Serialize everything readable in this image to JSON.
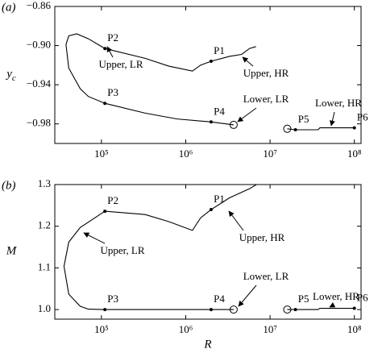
{
  "chart_data": [
    {
      "type": "line",
      "panel_label": "(a)",
      "ylabel": "y",
      "ylabel_subscript": "c",
      "log_x": true,
      "xlim": [
        28000,
        120000000
      ],
      "xticks": [
        {
          "value": 100000,
          "label": "10⁵"
        },
        {
          "value": 1000000,
          "label": "10⁶"
        },
        {
          "value": 10000000,
          "label": "10⁷"
        },
        {
          "value": 100000000,
          "label": "10⁸"
        }
      ],
      "ylim": [
        -1.0,
        -0.86
      ],
      "yticks": [
        {
          "value": -0.98,
          "label": "−0.98"
        },
        {
          "value": -0.94,
          "label": "−0.94"
        },
        {
          "value": -0.9,
          "label": "−0.90"
        },
        {
          "value": -0.86,
          "label": "−0.86"
        }
      ],
      "series": [
        {
          "color": "#000000",
          "x": [
            3700000,
            2000000,
            790000,
            330000,
            110000,
            70000,
            56000,
            41000,
            38000,
            41000,
            51000,
            70000,
            110000,
            330000,
            630000,
            1200000,
            1500000,
            2000000,
            3300000,
            4600000,
            5700000,
            6800000
          ],
          "values": [
            -0.981,
            -0.978,
            -0.975,
            -0.969,
            -0.959,
            -0.952,
            -0.944,
            -0.923,
            -0.899,
            -0.89,
            -0.888,
            -0.893,
            -0.903,
            -0.913,
            -0.921,
            -0.926,
            -0.92,
            -0.916,
            -0.911,
            -0.909,
            -0.903,
            -0.901
          ]
        },
        {
          "color": "#000000",
          "x": [
            16000000,
            20000000,
            37000000,
            39000000,
            100000000
          ],
          "values": [
            -0.985,
            -0.986,
            -0.986,
            -0.984,
            -0.984
          ]
        }
      ],
      "points": {
        "labels": [
          "P1",
          "P2",
          "P3",
          "P4",
          "P5",
          "P6"
        ],
        "x": [
          2000000,
          110000,
          110000,
          2000000,
          20000000,
          100000000
        ],
        "values": [
          -0.916,
          -0.903,
          -0.959,
          -0.978,
          -0.986,
          -0.984
        ]
      },
      "open_markers": {
        "x": [
          3700000,
          16000000
        ],
        "values": [
          -0.981,
          -0.985
        ]
      },
      "annotations": [
        "Upper, LR",
        "Upper, HR",
        "Lower, LR",
        "Lower, HR"
      ]
    },
    {
      "type": "line",
      "panel_label": "(b)",
      "ylabel": "M",
      "xlabel": "R",
      "log_x": true,
      "xlim": [
        28000,
        120000000
      ],
      "xticks": [
        {
          "value": 100000,
          "label": "10⁵"
        },
        {
          "value": 1000000,
          "label": "10⁶"
        },
        {
          "value": 10000000,
          "label": "10⁷"
        },
        {
          "value": 100000000,
          "label": "10⁸"
        }
      ],
      "ylim": [
        0.977,
        1.3
      ],
      "yticks": [
        {
          "value": 1.0,
          "label": "1.0"
        },
        1.1,
        1.2,
        1.3
      ],
      "series": [
        {
          "color": "#000000",
          "x": [
            3700000,
            2000000,
            110000,
            70000,
            56000,
            41000,
            36000,
            41000,
            56000,
            110000,
            330000,
            630000,
            1200000,
            1500000,
            2000000,
            3300000,
            5700000,
            6900000
          ],
          "values": [
            1.0,
            1.0,
            1.0,
            1.001,
            1.008,
            1.037,
            1.104,
            1.162,
            1.197,
            1.236,
            1.228,
            1.211,
            1.19,
            1.22,
            1.24,
            1.268,
            1.29,
            1.3
          ]
        },
        {
          "color": "#000000",
          "x": [
            16000000,
            20000000,
            37000000,
            39000000,
            100000000
          ],
          "values": [
            1.0,
            1.0,
            1.0,
            1.003,
            1.003
          ]
        }
      ],
      "points": {
        "labels": [
          "P1",
          "P2",
          "P3",
          "P4",
          "P5",
          "P6"
        ],
        "x": [
          2000000,
          110000,
          110000,
          2000000,
          20000000,
          100000000
        ],
        "values": [
          1.24,
          1.236,
          1.0,
          1.0,
          1.0,
          1.003
        ]
      },
      "open_markers": {
        "x": [
          3700000,
          16000000
        ],
        "values": [
          1.0,
          1.0
        ]
      },
      "annotations": [
        "Upper, LR",
        "Upper, HR",
        "Lower, LR",
        "Lower, HR"
      ]
    }
  ]
}
